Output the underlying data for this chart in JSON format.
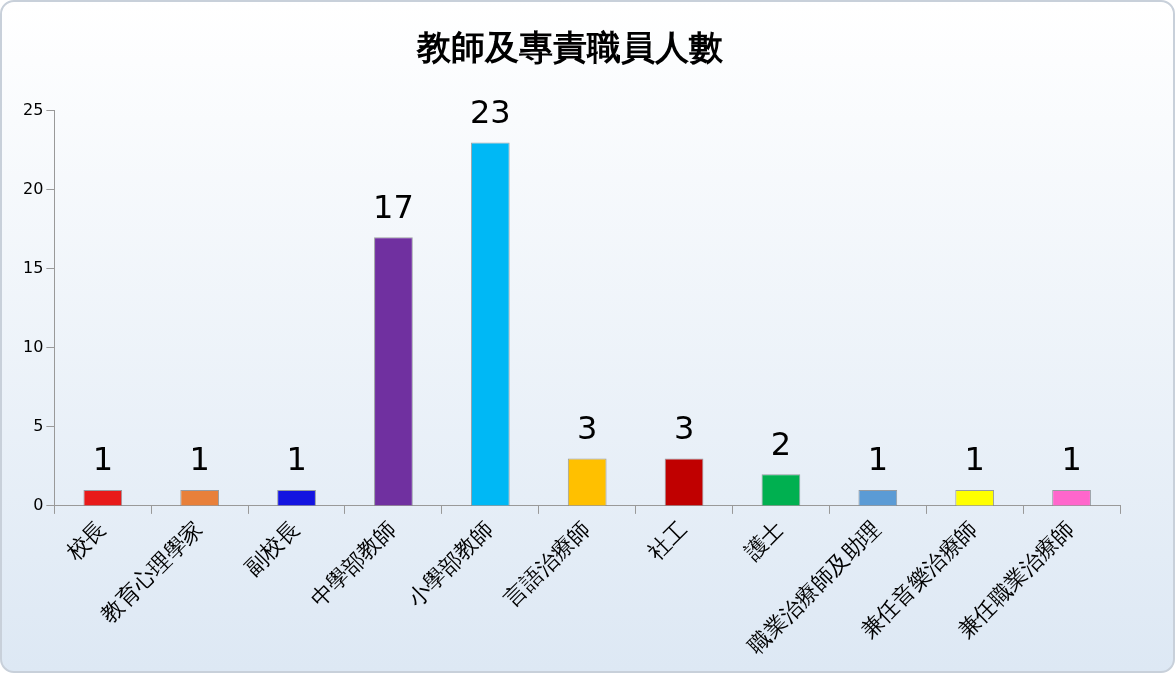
{
  "chart_data": {
    "type": "bar",
    "title": "教師及專責職員人數",
    "categories": [
      "校長",
      "教育心理學家",
      "副校長",
      "中學部教師",
      "小學部教師",
      "言語治療師",
      "社工",
      "護士",
      "職業治療師及助理",
      "兼任音樂治療師",
      "兼任職業治療師"
    ],
    "values": [
      1,
      1,
      1,
      17,
      23,
      3,
      3,
      2,
      1,
      1,
      1
    ],
    "colors": [
      "#e81a1a",
      "#e8803a",
      "#1414e0",
      "#7030a0",
      "#00b8f5",
      "#ffc000",
      "#c00000",
      "#00b050",
      "#5b9bd5",
      "#ffff00",
      "#ff66cc"
    ],
    "ylim": [
      0,
      25
    ],
    "yticks": [
      0,
      5,
      10,
      15,
      20,
      25
    ],
    "grid": false,
    "data_labels": true,
    "legend": false
  }
}
